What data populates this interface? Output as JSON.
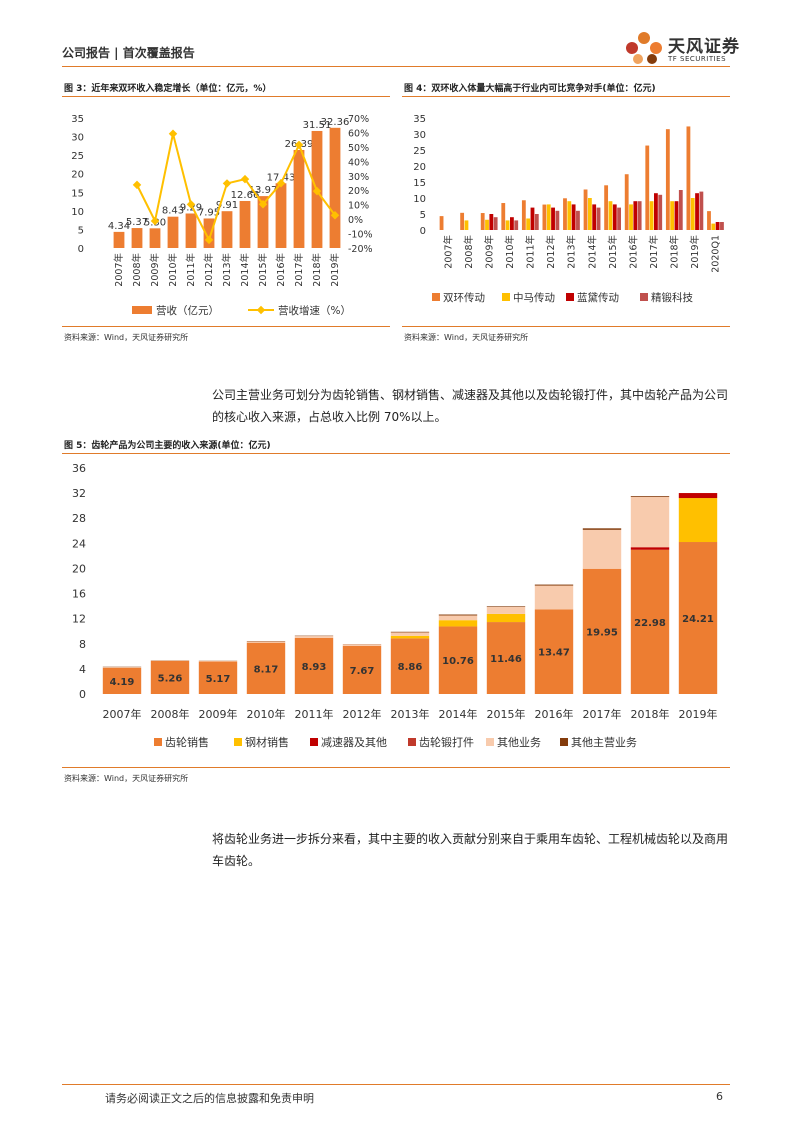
{
  "header": {
    "breadcrumb": "公司报告 | 首次覆盖报告",
    "logo_cn": "天风证券",
    "logo_en": "TF SECURITIES"
  },
  "figures": {
    "fig3": {
      "title": "图 3：近年来双环收入稳定增长（单位：亿元，%）",
      "source": "资料来源：Wind，天风证券研究所"
    },
    "fig4": {
      "title": "图 4：双环收入体量大幅高于行业内可比竞争对手(单位：亿元)",
      "source": "资料来源：Wind，天风证券研究所"
    },
    "fig5": {
      "title": "图 5：齿轮产品为公司主要的收入来源(单位：亿元)",
      "source": "资料来源：Wind，天风证券研究所"
    }
  },
  "paragraphs": {
    "p1": "公司主营业务可划分为齿轮销售、钢材销售、减速器及其他以及齿轮锻打件，其中齿轮产品为公司的核心收入来源，占总收入比例 70%以上。",
    "p2": "将齿轮业务进一步拆分来看，其中主要的收入贡献分别来自于乘用车齿轮、工程机械齿轮以及商用车齿轮。"
  },
  "footer": {
    "disclaimer": "请务必阅读正文之后的信息披露和免责申明",
    "page": "6"
  },
  "colors": {
    "accent": "#e07b2a",
    "orange": "#ed7d31",
    "yellow": "#ffc000",
    "red": "#c00000",
    "darkred": "#c0392b",
    "peach": "#f8cbad",
    "brown": "#843c0c"
  },
  "chart_data": [
    {
      "type": "bar",
      "categories": [
        "2007年",
        "2008年",
        "2009年",
        "2010年",
        "2011年",
        "2012年",
        "2013年",
        "2014年",
        "2015年",
        "2016年",
        "2017年",
        "2018年",
        "2019年"
      ],
      "series": [
        {
          "name": "营收（亿元）",
          "type": "bar",
          "axis": "left",
          "color": "#ed7d31",
          "values": [
            4.34,
            5.37,
            5.3,
            8.43,
            9.29,
            7.95,
            9.91,
            12.66,
            13.97,
            17.43,
            26.39,
            31.51,
            32.36
          ]
        },
        {
          "name": "营收增速（%）",
          "type": "line",
          "axis": "right",
          "color": "#ffc000",
          "values": [
            null,
            23.7,
            -1.3,
            59.1,
            10.2,
            -14.4,
            24.7,
            27.7,
            10.3,
            24.8,
            51.4,
            19.4,
            2.7
          ]
        }
      ],
      "ylim": [
        0,
        35
      ],
      "yticks": [
        0,
        5,
        10,
        15,
        20,
        25,
        30,
        35
      ],
      "y2lim": [
        -20,
        70
      ],
      "y2ticks": [
        "-20%",
        "-10%",
        "0%",
        "10%",
        "20%",
        "30%",
        "40%",
        "50%",
        "60%",
        "70%"
      ],
      "legend": "bottom"
    },
    {
      "type": "bar",
      "categories": [
        "2007年",
        "2008年",
        "2009年",
        "2010年",
        "2011年",
        "2012年",
        "2013年",
        "2014年",
        "2015年",
        "2016年",
        "2017年",
        "2018年",
        "2019年",
        "2020Q1"
      ],
      "series": [
        {
          "name": "双环传动",
          "color": "#ed7d31",
          "values": [
            4.34,
            5.37,
            5.3,
            8.43,
            9.29,
            7.95,
            9.91,
            12.66,
            13.97,
            17.43,
            26.39,
            31.51,
            32.36,
            5.9
          ]
        },
        {
          "name": "中马传动",
          "color": "#ffc000",
          "values": [
            null,
            3.0,
            3.2,
            3.0,
            3.6,
            8.0,
            9.0,
            10.0,
            9.0,
            8.0,
            9.0,
            9.0,
            10.0,
            2.0
          ]
        },
        {
          "name": "蓝黛传动",
          "color": "#c00000",
          "values": [
            null,
            null,
            5.0,
            4.0,
            7.0,
            7.0,
            8.0,
            8.0,
            8.0,
            9.0,
            11.5,
            9.0,
            11.5,
            2.5
          ]
        },
        {
          "name": "精锻科技",
          "color": "#c0504d",
          "values": [
            null,
            null,
            4.0,
            3.0,
            5.0,
            6.0,
            6.0,
            7.0,
            7.0,
            9.0,
            11.0,
            12.5,
            12.0,
            2.5
          ]
        }
      ],
      "ylim": [
        0,
        35
      ],
      "yticks": [
        0,
        5,
        10,
        15,
        20,
        25,
        30,
        35
      ],
      "legend": "bottom"
    },
    {
      "type": "bar",
      "stacked": true,
      "categories": [
        "2007年",
        "2008年",
        "2009年",
        "2010年",
        "2011年",
        "2012年",
        "2013年",
        "2014年",
        "2015年",
        "2016年",
        "2017年",
        "2018年",
        "2019年"
      ],
      "series": [
        {
          "name": "齿轮销售",
          "color": "#ed7d31",
          "values": [
            4.19,
            5.26,
            5.17,
            8.17,
            8.93,
            7.67,
            8.86,
            10.76,
            11.46,
            13.47,
            19.95,
            22.98,
            24.21
          ],
          "labels": true
        },
        {
          "name": "钢材销售",
          "color": "#ffc000",
          "values": [
            0,
            0,
            0,
            0,
            0,
            0,
            0.4,
            1.0,
            1.3,
            0,
            0,
            0,
            7.0
          ]
        },
        {
          "name": "减速器及其他",
          "color": "#c00000",
          "values": [
            0,
            0,
            0,
            0,
            0,
            0,
            0,
            0,
            0,
            0,
            0,
            0.4,
            0.8
          ]
        },
        {
          "name": "齿轮锻打件",
          "color": "#c0392b",
          "values": [
            0,
            0,
            0,
            0,
            0,
            0,
            0,
            0,
            0,
            0,
            0,
            0,
            0
          ]
        },
        {
          "name": "其他业务",
          "color": "#f8cbad",
          "values": [
            0.1,
            0.08,
            0.1,
            0.2,
            0.3,
            0.25,
            0.55,
            0.75,
            1.1,
            3.8,
            6.2,
            8.0,
            0
          ]
        },
        {
          "name": "其他主营业务",
          "color": "#843c0c",
          "values": [
            0.05,
            0.03,
            0.03,
            0.06,
            0.06,
            0.03,
            0.1,
            0.15,
            0.1,
            0.16,
            0.24,
            0.13,
            0
          ]
        }
      ],
      "ylim": [
        0,
        36
      ],
      "yticks": [
        0,
        4,
        8,
        12,
        16,
        20,
        24,
        28,
        32,
        36
      ],
      "legend": "bottom"
    }
  ]
}
